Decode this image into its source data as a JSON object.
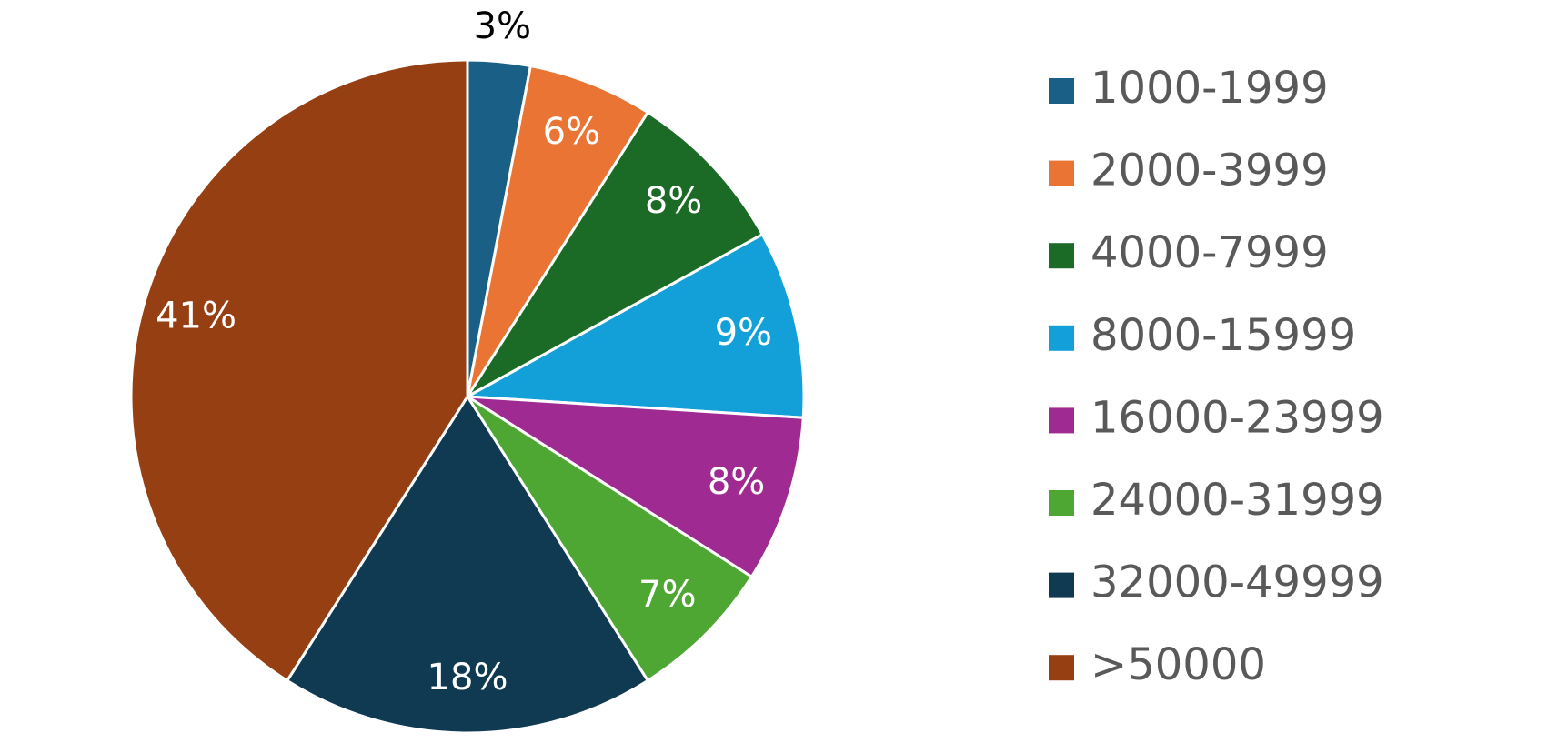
{
  "chart_data": {
    "type": "pie",
    "categories": [
      "1000-1999",
      "2000-3999",
      "4000-7999",
      "8000-15999",
      "16000-23999",
      "24000-31999",
      "32000-49999",
      ">50000"
    ],
    "values": [
      3,
      6,
      8,
      9,
      8,
      7,
      18,
      41
    ],
    "value_labels": [
      "3%",
      "6%",
      "8%",
      "9%",
      "8%",
      "7%",
      "18%",
      "41%"
    ],
    "colors": [
      "#1a5f86",
      "#e97434",
      "#1b6b27",
      "#139fd8",
      "#9e2a92",
      "#4fa733",
      "#0f3a52",
      "#963f12"
    ],
    "legend": "right"
  }
}
